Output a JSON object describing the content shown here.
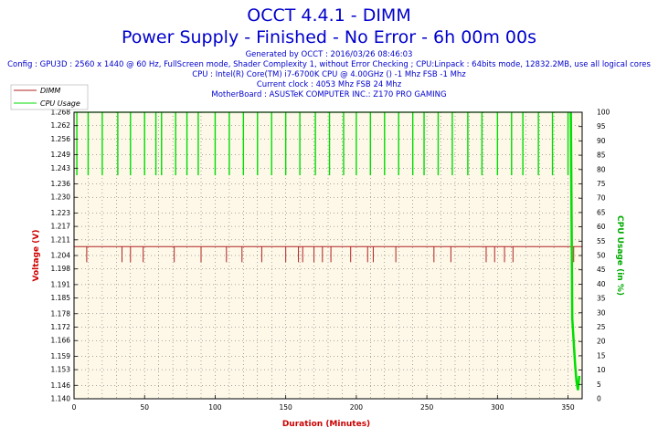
{
  "header": {
    "title_line1": "OCCT 4.4.1 - DIMM",
    "title_line2": "Power Supply - Finished - No Error - 6h 00m 00s",
    "generated": "Generated by OCCT : 2016/03/26 08:46:03",
    "config": "Config : GPU3D : 2560 x 1440 @ 60 Hz, FullScreen mode, Shader Complexity 1, without Error Checking ; CPU:Linpack : 64bits mode, 12832.2MB, use all logical cores",
    "cpu": "CPU : Intel(R) Core(TM) i7-6700K CPU @ 4.00GHz () -1 Mhz FSB -1 Mhz",
    "clock": "Current clock : 4053 Mhz FSB 24 Mhz",
    "motherboard": "MotherBoard : ASUSTeK COMPUTER INC.: Z170 PRO GAMING"
  },
  "colors": {
    "dimm": "#b22222",
    "cpu": "#00dd00",
    "plot_bg": "#fdf8e8",
    "axis_label_left": "#cc0000",
    "axis_label_right": "#00aa00",
    "axis_label_bottom": "#cc0000"
  },
  "chart_data": {
    "type": "line",
    "xlabel": "Duration (Minutes)",
    "ylabel": "Voltage (V)",
    "y2label": "CPU Usage (in %)",
    "xlim": [
      0,
      360
    ],
    "ylim": [
      1.14,
      1.268
    ],
    "y2lim": [
      0,
      100
    ],
    "xticks": [
      0,
      50,
      100,
      150,
      200,
      250,
      300,
      350
    ],
    "yticks": [
      1.14,
      1.146,
      1.153,
      1.159,
      1.166,
      1.172,
      1.178,
      1.185,
      1.191,
      1.198,
      1.204,
      1.211,
      1.217,
      1.223,
      1.23,
      1.236,
      1.243,
      1.249,
      1.256,
      1.262,
      1.268
    ],
    "y2ticks": [
      0,
      5,
      10,
      15,
      20,
      25,
      30,
      35,
      40,
      45,
      50,
      55,
      60,
      65,
      70,
      75,
      80,
      85,
      90,
      95,
      100
    ],
    "grid": true,
    "legend_position": "top-left",
    "series": [
      {
        "name": "DIMM",
        "axis": "left",
        "baseline": 1.208,
        "dips_x": [
          9,
          34,
          40,
          49,
          71,
          90,
          108,
          119,
          133,
          150,
          159,
          162,
          170,
          176,
          182,
          196,
          208,
          212,
          228,
          255,
          267,
          292,
          298,
          305,
          311,
          354
        ],
        "dip_value": 1.201
      },
      {
        "name": "CPU Usage",
        "axis": "right",
        "baseline": 100,
        "dips_x": [
          2,
          10,
          20,
          31,
          40,
          50,
          58,
          62,
          72,
          80,
          88,
          100,
          110,
          120,
          130,
          140,
          150,
          160,
          171,
          181,
          191,
          200,
          210,
          220,
          230,
          240,
          248,
          258,
          268,
          279,
          289,
          300,
          310,
          318,
          329,
          339,
          350
        ],
        "dip_value": 78,
        "final_drop_x": [
          353,
          354,
          355,
          356,
          357,
          358
        ],
        "final_drop_values": [
          28,
          20,
          12,
          6,
          3,
          8
        ]
      }
    ]
  }
}
